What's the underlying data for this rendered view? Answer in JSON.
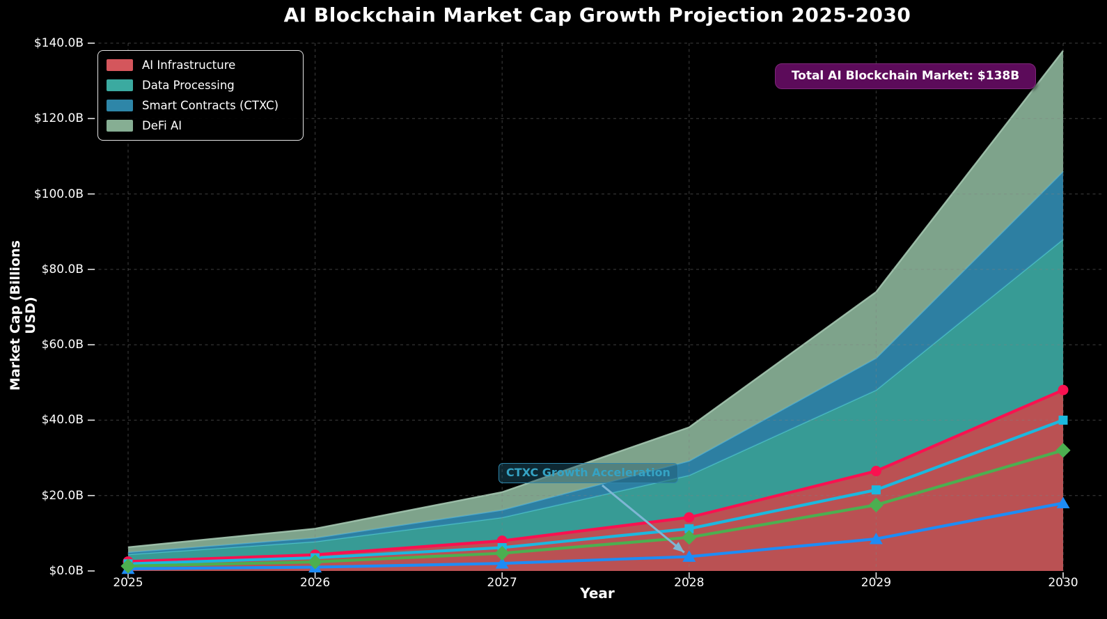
{
  "title": "AI Blockchain Market Cap Growth Projection 2025-2030",
  "axes": {
    "x_label": "Year",
    "y_label": "Market Cap (Billions USD)",
    "y_tick_labels": [
      "$0.0B",
      "$20.0B",
      "$40.0B",
      "$60.0B",
      "$80.0B",
      "$100.0B",
      "$120.0B",
      "$140.0B"
    ],
    "y_tick_values": [
      0,
      20,
      40,
      60,
      80,
      100,
      120,
      140
    ],
    "x_tick_labels": [
      "2025",
      "2026",
      "2027",
      "2028",
      "2029",
      "2030"
    ]
  },
  "annotations": {
    "total_market": "Total AI Blockchain Market: $138B",
    "ctxc": "CTXC Growth Acceleration",
    "ctxc_target_year": 2028
  },
  "colors": {
    "background": "#000000",
    "text": "#ffffff",
    "grid": "#808080",
    "total_box_bg": "#5C0B5A",
    "ctxc_box_border": "#2E86AB",
    "ctxc_text": "#35A3C4",
    "arrow": "#7EB6D4"
  },
  "chart_data": {
    "type": "area",
    "stacked": true,
    "title": "AI Blockchain Market Cap Growth Projection 2025-2030",
    "xlabel": "Year",
    "ylabel": "Market Cap (Billions USD)",
    "x": [
      2025,
      2026,
      2027,
      2028,
      2029,
      2030
    ],
    "ylim": [
      0,
      140
    ],
    "grid": true,
    "legend_position": "upper left",
    "y_unit": "billions USD",
    "total_2030": 138,
    "series": [
      {
        "name": "AI Infrastructure",
        "values": [
          2.5,
          4.3,
          8.0,
          14.2,
          26.5,
          48.0
        ],
        "area_color": "#C45557",
        "edge_color": "#C45557",
        "line_color": "#F91150",
        "marker": "circle"
      },
      {
        "name": "Data Processing",
        "values": [
          1.9,
          3.5,
          6.2,
          11.2,
          21.5,
          40.0
        ],
        "area_color": "#3AA39D",
        "edge_color": "#4EC0C8",
        "line_color": "#1CB8DE",
        "marker": "square"
      },
      {
        "name": "Smart Contracts (CTXC)",
        "values": [
          0.6,
          1.0,
          2.0,
          3.8,
          8.5,
          18.0
        ],
        "area_color": "#2F86AB",
        "edge_color": "#4FADD3",
        "line_color": "#1E8CF5",
        "marker": "triangle"
      },
      {
        "name": "DeFi AI",
        "values": [
          1.3,
          2.4,
          4.7,
          8.9,
          17.5,
          32.0
        ],
        "area_color": "#85AC92",
        "edge_color": "#A4C6B0",
        "line_color": "#4CAF50",
        "marker": "diamond"
      }
    ],
    "legend_swatch_colors": [
      "#D4565C",
      "#3BAAA0",
      "#2E86A8",
      "#86AE93"
    ]
  }
}
